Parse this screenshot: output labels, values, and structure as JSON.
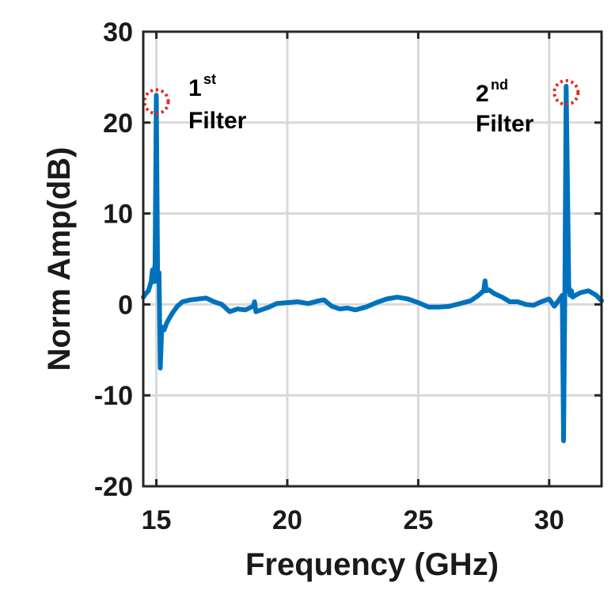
{
  "colors": {
    "series": "#0072bd",
    "grid": "#d9d9d9",
    "axis": "#262626",
    "marker_circle": "#e8231c"
  },
  "chart_data": {
    "type": "line",
    "title": "",
    "xlabel": "Frequency (GHz)",
    "ylabel": "Norm Amp(dB)",
    "xlim": [
      14.5,
      32
    ],
    "ylim": [
      -20,
      30
    ],
    "xticks": [
      15,
      20,
      25,
      30
    ],
    "yticks": [
      -20,
      -10,
      0,
      10,
      20,
      30
    ],
    "grid": true,
    "legend": "none",
    "series": [
      {
        "x": [
          14.5,
          14.6,
          14.7,
          14.8,
          14.85,
          14.9,
          14.95,
          15.0,
          15.05,
          15.1,
          15.15,
          15.2,
          15.25,
          15.3,
          15.4,
          15.5,
          15.6,
          15.8,
          16.0,
          16.3,
          16.6,
          16.9,
          17.2,
          17.5,
          17.8,
          18.1,
          18.4,
          18.7,
          18.75,
          18.8,
          19.0,
          19.3,
          19.6,
          20.0,
          20.4,
          20.8,
          21.2,
          21.4,
          21.7,
          22.0,
          22.3,
          22.6,
          23.0,
          23.4,
          23.8,
          24.2,
          24.6,
          25.0,
          25.4,
          25.8,
          26.2,
          26.6,
          27.0,
          27.3,
          27.5,
          27.55,
          27.6,
          27.7,
          27.9,
          28.2,
          28.5,
          28.8,
          29.1,
          29.4,
          29.7,
          30.0,
          30.2,
          30.4,
          30.5,
          30.55,
          30.6,
          30.65,
          30.7,
          30.75,
          30.8,
          30.85,
          30.9,
          31.0,
          31.2,
          31.5,
          31.8,
          32.0
        ],
        "y": [
          0.8,
          1.2,
          1.5,
          2.5,
          3.8,
          2.5,
          4.5,
          23.0,
          2.5,
          3.5,
          -7.0,
          -3.0,
          -2.5,
          -2.8,
          -2.0,
          -1.5,
          -1.0,
          -0.2,
          0.3,
          0.5,
          0.6,
          0.7,
          0.3,
          0.0,
          -0.8,
          -0.5,
          -0.6,
          -0.2,
          0.3,
          -0.8,
          -0.6,
          -0.3,
          0.1,
          0.2,
          0.3,
          0.1,
          0.4,
          0.5,
          -0.2,
          -0.5,
          -0.4,
          -0.6,
          -0.3,
          0.2,
          0.6,
          0.8,
          0.6,
          0.2,
          -0.3,
          -0.3,
          -0.2,
          0.1,
          0.4,
          1.0,
          1.5,
          2.6,
          1.5,
          1.6,
          1.2,
          0.8,
          0.3,
          0.3,
          0.0,
          -0.1,
          0.3,
          0.6,
          -0.2,
          0.6,
          1.0,
          -15.0,
          2.0,
          24.0,
          13.0,
          2.0,
          1.0,
          1.5,
          0.8,
          1.0,
          1.3,
          1.5,
          1.0,
          0.4
        ]
      }
    ],
    "annotations": [
      {
        "number": "1",
        "sup": "st",
        "text": "Filter",
        "x": 15.0,
        "y": 23.0
      },
      {
        "number": "2",
        "sup": "nd",
        "text": "Filter",
        "x": 30.65,
        "y": 24.0
      }
    ]
  }
}
